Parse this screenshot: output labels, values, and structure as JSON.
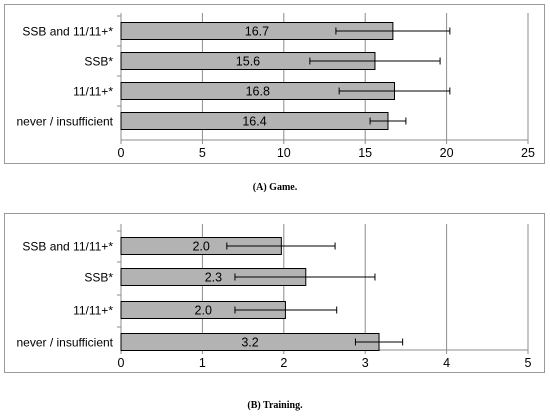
{
  "chart_data": [
    {
      "type": "bar",
      "orientation": "horizontal",
      "caption": "(A) Game.",
      "categories": [
        "SSB and 11/11+*",
        "SSB*",
        "11/11+*",
        "never / insufficient"
      ],
      "values": [
        16.7,
        15.6,
        16.8,
        16.4
      ],
      "value_labels": [
        "16.7",
        "15.6",
        "16.8",
        "16.4"
      ],
      "error_low": [
        13.2,
        11.6,
        13.4,
        15.3
      ],
      "error_high": [
        20.2,
        19.6,
        20.2,
        17.5
      ],
      "xlim": [
        0,
        25
      ],
      "xticks": [
        0,
        5,
        10,
        15,
        20,
        25
      ],
      "xtick_labels": [
        "0",
        "5",
        "10",
        "15",
        "20",
        "25"
      ],
      "grid": "vertical",
      "bar_color": "#b3b3b3"
    },
    {
      "type": "bar",
      "orientation": "horizontal",
      "caption": "(B) Training.",
      "categories": [
        "SSB and 11/11+*",
        "SSB*",
        "11/11+*",
        "never / insufficient"
      ],
      "values": [
        1.97,
        2.27,
        2.02,
        3.17
      ],
      "value_labels": [
        "2.0",
        "2.3",
        "2.0",
        "3.2"
      ],
      "error_low": [
        1.3,
        1.4,
        1.4,
        2.88
      ],
      "error_high": [
        2.63,
        3.12,
        2.65,
        3.46
      ],
      "xlim": [
        0,
        5
      ],
      "xticks": [
        0,
        1,
        2,
        3,
        4,
        5
      ],
      "xtick_labels": [
        "0",
        "1",
        "2",
        "3",
        "4",
        "5"
      ],
      "grid": "vertical",
      "bar_color": "#b3b3b3"
    }
  ]
}
